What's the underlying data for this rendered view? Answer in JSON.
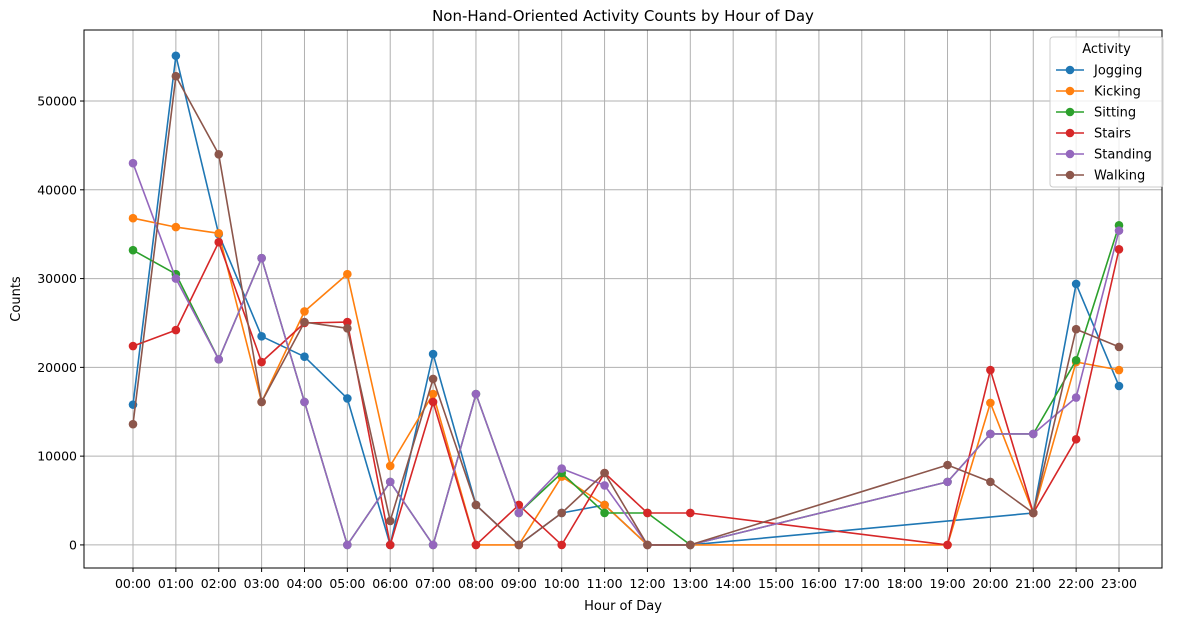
{
  "chart_data": {
    "type": "line",
    "title": "Non-Hand-Oriented Activity Counts by Hour of Day",
    "xlabel": "Hour of Day",
    "ylabel": "Counts",
    "categories": [
      "00:00",
      "01:00",
      "02:00",
      "03:00",
      "04:00",
      "05:00",
      "06:00",
      "07:00",
      "08:00",
      "09:00",
      "10:00",
      "11:00",
      "12:00",
      "13:00",
      "14:00",
      "15:00",
      "16:00",
      "17:00",
      "18:00",
      "19:00",
      "20:00",
      "21:00",
      "22:00",
      "23:00"
    ],
    "ylim": [
      -2600,
      58000
    ],
    "yticks": [
      0,
      10000,
      20000,
      30000,
      40000,
      50000
    ],
    "grid": true,
    "legend": {
      "title": "Activity",
      "position": "top-right"
    },
    "series": [
      {
        "name": "Jogging",
        "color": "#1f77b4",
        "points": [
          [
            0,
            15800
          ],
          [
            1,
            55100
          ],
          [
            2,
            35000
          ],
          [
            3,
            23500
          ],
          [
            4,
            21200
          ],
          [
            5,
            16500
          ],
          [
            6,
            0
          ],
          [
            7,
            21500
          ],
          [
            8,
            4500
          ],
          [
            9,
            0
          ],
          [
            10,
            3600
          ],
          [
            11,
            4500
          ],
          [
            12,
            0
          ],
          [
            13,
            0
          ],
          [
            21,
            3600
          ],
          [
            22,
            29400
          ],
          [
            23,
            17900
          ]
        ]
      },
      {
        "name": "Kicking",
        "color": "#ff7f0e",
        "points": [
          [
            0,
            36800
          ],
          [
            1,
            35800
          ],
          [
            2,
            35100
          ],
          [
            3,
            16100
          ],
          [
            4,
            26300
          ],
          [
            5,
            30500
          ],
          [
            6,
            8900
          ],
          [
            7,
            17000
          ],
          [
            8,
            0
          ],
          [
            9,
            0
          ],
          [
            10,
            7700
          ],
          [
            11,
            4500
          ],
          [
            12,
            0
          ],
          [
            13,
            0
          ],
          [
            19,
            0
          ],
          [
            20,
            16000
          ],
          [
            21,
            3600
          ],
          [
            22,
            20600
          ],
          [
            23,
            19700
          ]
        ]
      },
      {
        "name": "Sitting",
        "color": "#2ca02c",
        "points": [
          [
            0,
            33200
          ],
          [
            1,
            30500
          ],
          [
            2,
            20900
          ],
          [
            3,
            32300
          ],
          [
            4,
            16100
          ],
          [
            5,
            0
          ],
          [
            6,
            7100
          ],
          [
            7,
            0
          ],
          [
            8,
            17000
          ],
          [
            9,
            3600
          ],
          [
            10,
            8100
          ],
          [
            11,
            3600
          ],
          [
            12,
            3600
          ],
          [
            13,
            0
          ],
          [
            19,
            7100
          ],
          [
            20,
            12500
          ],
          [
            21,
            12500
          ],
          [
            22,
            20800
          ],
          [
            23,
            36000
          ]
        ]
      },
      {
        "name": "Stairs",
        "color": "#d62728",
        "points": [
          [
            0,
            22400
          ],
          [
            1,
            24200
          ],
          [
            2,
            34100
          ],
          [
            3,
            20600
          ],
          [
            4,
            25000
          ],
          [
            5,
            25100
          ],
          [
            6,
            0
          ],
          [
            7,
            16100
          ],
          [
            8,
            0
          ],
          [
            9,
            4500
          ],
          [
            10,
            0
          ],
          [
            11,
            8100
          ],
          [
            12,
            3600
          ],
          [
            13,
            3600
          ],
          [
            19,
            0
          ],
          [
            20,
            19700
          ],
          [
            21,
            3600
          ],
          [
            22,
            11900
          ],
          [
            23,
            33300
          ]
        ]
      },
      {
        "name": "Standing",
        "color": "#9467bd",
        "points": [
          [
            0,
            43000
          ],
          [
            1,
            30000
          ],
          [
            2,
            20900
          ],
          [
            3,
            32300
          ],
          [
            4,
            16100
          ],
          [
            5,
            0
          ],
          [
            6,
            7100
          ],
          [
            7,
            0
          ],
          [
            8,
            17000
          ],
          [
            9,
            3600
          ],
          [
            10,
            8600
          ],
          [
            11,
            6700
          ],
          [
            12,
            0
          ],
          [
            13,
            0
          ],
          [
            19,
            7100
          ],
          [
            20,
            12500
          ],
          [
            21,
            12500
          ],
          [
            22,
            16600
          ],
          [
            23,
            35400
          ]
        ]
      },
      {
        "name": "Walking",
        "color": "#8c564b",
        "points": [
          [
            0,
            13600
          ],
          [
            1,
            52800
          ],
          [
            2,
            44000
          ],
          [
            3,
            16100
          ],
          [
            4,
            25100
          ],
          [
            5,
            24400
          ],
          [
            6,
            2700
          ],
          [
            7,
            18700
          ],
          [
            8,
            4500
          ],
          [
            9,
            0
          ],
          [
            10,
            3600
          ],
          [
            11,
            8100
          ],
          [
            12,
            0
          ],
          [
            13,
            0
          ],
          [
            19,
            9000
          ],
          [
            20,
            7100
          ],
          [
            21,
            3600
          ],
          [
            22,
            24300
          ],
          [
            23,
            22300
          ]
        ]
      }
    ]
  }
}
